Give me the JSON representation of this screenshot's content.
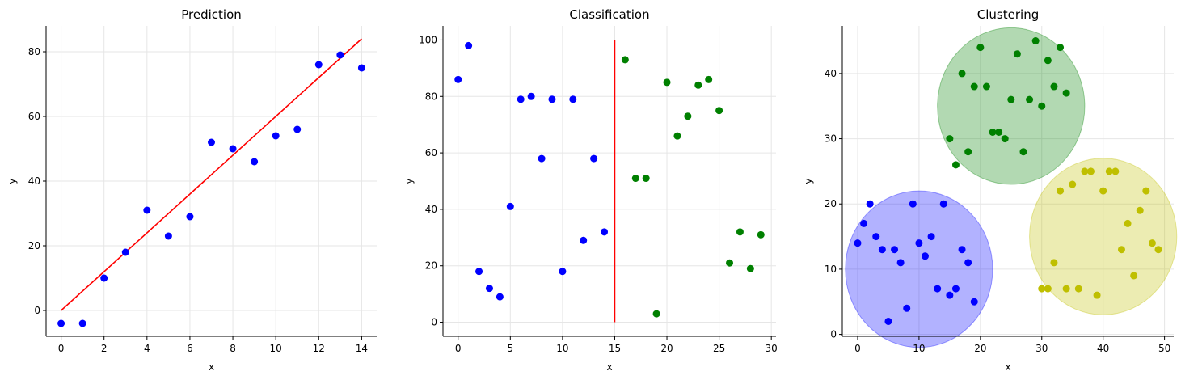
{
  "chart_data": [
    {
      "type": "scatter",
      "title": "Prediction",
      "xlabel": "x",
      "ylabel": "y",
      "xlim": [
        -0.7,
        14.7
      ],
      "ylim": [
        -8,
        88
      ],
      "xticks": [
        0,
        2,
        4,
        6,
        8,
        10,
        12,
        14
      ],
      "yticks": [
        0,
        20,
        40,
        60,
        80
      ],
      "grid": true,
      "series": [
        {
          "color": "#0000ff",
          "points": [
            [
              0,
              -4
            ],
            [
              1,
              -4
            ],
            [
              2,
              10
            ],
            [
              3,
              18
            ],
            [
              4,
              31
            ],
            [
              5,
              23
            ],
            [
              6,
              29
            ],
            [
              7,
              52
            ],
            [
              8,
              50
            ],
            [
              9,
              46
            ],
            [
              10,
              54
            ],
            [
              11,
              56
            ],
            [
              12,
              76
            ],
            [
              13,
              79
            ],
            [
              14,
              75
            ]
          ]
        }
      ],
      "lines": [
        {
          "color": "#ff0000",
          "points": [
            [
              0,
              0
            ],
            [
              14,
              84
            ]
          ]
        }
      ]
    },
    {
      "type": "scatter",
      "title": "Classification",
      "xlabel": "x",
      "ylabel": "y",
      "xlim": [
        -1.45,
        30.45
      ],
      "ylim": [
        -5,
        105
      ],
      "xticks": [
        0,
        5,
        10,
        15,
        20,
        25,
        30
      ],
      "yticks": [
        0,
        20,
        40,
        60,
        80,
        100
      ],
      "grid": true,
      "series": [
        {
          "color": "#0000ff",
          "points": [
            [
              0,
              86
            ],
            [
              1,
              98
            ],
            [
              2,
              18
            ],
            [
              3,
              12
            ],
            [
              4,
              9
            ],
            [
              5,
              41
            ],
            [
              6,
              79
            ],
            [
              7,
              80
            ],
            [
              8,
              58
            ],
            [
              9,
              79
            ],
            [
              10,
              18
            ],
            [
              11,
              79
            ],
            [
              12,
              29
            ],
            [
              13,
              58
            ],
            [
              14,
              32
            ]
          ]
        },
        {
          "color": "#008000",
          "points": [
            [
              16,
              93
            ],
            [
              17,
              51
            ],
            [
              18,
              51
            ],
            [
              19,
              3
            ],
            [
              20,
              85
            ],
            [
              21,
              66
            ],
            [
              22,
              73
            ],
            [
              23,
              84
            ],
            [
              24,
              86
            ],
            [
              25,
              75
            ],
            [
              26,
              21
            ],
            [
              27,
              32
            ],
            [
              28,
              19
            ],
            [
              29,
              31
            ]
          ]
        }
      ],
      "lines": [
        {
          "color": "#ff0000",
          "points": [
            [
              15,
              0
            ],
            [
              15,
              100
            ]
          ]
        }
      ]
    },
    {
      "type": "scatter",
      "title": "Clustering",
      "xlabel": "x",
      "ylabel": "y",
      "xlim": [
        -2.5,
        51.5
      ],
      "ylim": [
        -0.3,
        47.3
      ],
      "xticks": [
        0,
        10,
        20,
        30,
        40,
        50
      ],
      "yticks": [
        0,
        10,
        20,
        30,
        40
      ],
      "grid": true,
      "series": [
        {
          "color": "#0000ff",
          "points": [
            [
              0,
              14
            ],
            [
              1,
              17
            ],
            [
              2,
              20
            ],
            [
              3,
              15
            ],
            [
              4,
              13
            ],
            [
              5,
              2
            ],
            [
              6,
              13
            ],
            [
              7,
              11
            ],
            [
              8,
              4
            ],
            [
              9,
              20
            ],
            [
              10,
              14
            ],
            [
              11,
              12
            ],
            [
              12,
              15
            ],
            [
              13,
              7
            ],
            [
              14,
              20
            ],
            [
              15,
              6
            ],
            [
              16,
              7
            ],
            [
              17,
              13
            ],
            [
              18,
              11
            ],
            [
              19,
              5
            ]
          ]
        },
        {
          "color": "#008000",
          "points": [
            [
              15,
              30
            ],
            [
              16,
              26
            ],
            [
              17,
              40
            ],
            [
              18,
              28
            ],
            [
              19,
              38
            ],
            [
              20,
              44
            ],
            [
              21,
              38
            ],
            [
              22,
              31
            ],
            [
              23,
              31
            ],
            [
              24,
              30
            ],
            [
              25,
              36
            ],
            [
              26,
              43
            ],
            [
              27,
              28
            ],
            [
              28,
              36
            ],
            [
              29,
              45
            ],
            [
              30,
              35
            ],
            [
              31,
              42
            ],
            [
              32,
              38
            ],
            [
              33,
              44
            ],
            [
              34,
              37
            ]
          ]
        },
        {
          "color": "#bfbf00",
          "points": [
            [
              30,
              7
            ],
            [
              31,
              7
            ],
            [
              32,
              11
            ],
            [
              33,
              22
            ],
            [
              34,
              7
            ],
            [
              35,
              23
            ],
            [
              36,
              7
            ],
            [
              37,
              25
            ],
            [
              38,
              25
            ],
            [
              39,
              6
            ],
            [
              40,
              22
            ],
            [
              41,
              25
            ],
            [
              42,
              25
            ],
            [
              43,
              13
            ],
            [
              44,
              17
            ],
            [
              45,
              9
            ],
            [
              46,
              19
            ],
            [
              47,
              22
            ],
            [
              48,
              14
            ],
            [
              49,
              13
            ]
          ]
        }
      ],
      "circles": [
        {
          "color": "#0000ff",
          "center": [
            10,
            10
          ],
          "radius": 12
        },
        {
          "color": "#008000",
          "center": [
            25,
            35
          ],
          "radius": 12
        },
        {
          "color": "#bfbf00",
          "center": [
            40,
            15
          ],
          "radius": 12
        }
      ]
    }
  ]
}
